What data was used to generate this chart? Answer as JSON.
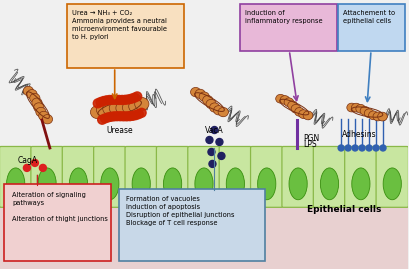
{
  "bg_color": "#f0f0f0",
  "cell_fill": "#c8e6a0",
  "cell_fill2": "#d8eeaa",
  "cell_edge": "#8ab848",
  "cell_nucleus_fill": "#6abf40",
  "cell_nucleus_edge": "#3a8f10",
  "bottom_bg": "#e8d0d0",
  "urease_box_text": "Urea → NH₃ + CO₂\nAmmonia provides a neutral\nmicroenviroment favourable\nto H. pylori",
  "urease_box_fc": "#f8e0c0",
  "urease_box_ec": "#cc6600",
  "inflammatory_box_text": "Induction of\ninflammatory response",
  "inflammatory_box_fc": "#e8b8d8",
  "inflammatory_box_ec": "#9040a0",
  "attachment_box_text": "Attachement to\nepithelial cells",
  "attachment_box_fc": "#c0d8f0",
  "attachment_box_ec": "#4080c0",
  "signaling_box_text": "Alteration of signaling\npathways\n\nAlteration of thight junctions",
  "signaling_box_fc": "#f0d0d0",
  "signaling_box_ec": "#cc2020",
  "vacuole_box_text": "Formation of vacuoles\nInduction of apoptosis\nDisruption of epithelial junctions\nBlockage of T cell response",
  "vacuole_box_fc": "#c8d8e8",
  "vacuole_box_ec": "#5080a0",
  "bacteria_body": "#d4853a",
  "bacteria_outline": "#7a3010",
  "flagella_color": "#404040",
  "urease_dot_color": "#cc2200",
  "vaca_dot_color": "#202060",
  "pgn_needle_color": "#7030a0",
  "adhesin_color": "#3060b0",
  "caga_needle_color": "#801010",
  "red_dot_color": "#dd2020"
}
